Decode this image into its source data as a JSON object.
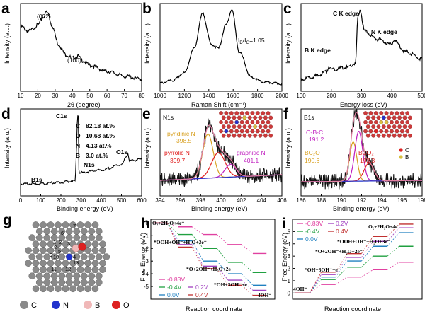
{
  "panels": {
    "a": {
      "letter": "a",
      "xlabel": "2θ (degree)",
      "ylabel": "Intensity (a.u.)",
      "xticks": [
        "10",
        "20",
        "30",
        "40",
        "50",
        "60",
        "70",
        "80"
      ],
      "peaks": [
        {
          "label": "(002)"
        },
        {
          "label": "(100)"
        }
      ]
    },
    "b": {
      "letter": "b",
      "xlabel": "Raman Shift (cm⁻¹)",
      "ylabel": "Intensity (a.u.)",
      "xticks": [
        "1000",
        "1200",
        "1400",
        "1600",
        "1800",
        "2000"
      ],
      "ratio": "I",
      "ratio_sub_d": "D",
      "ratio_mid": "/I",
      "ratio_sub_g": "G",
      "ratio_val": "=1.05"
    },
    "c": {
      "letter": "c",
      "xlabel": "Energy loss (eV)",
      "ylabel": "Intensity (a.u.)",
      "xticks": [
        "100",
        "200",
        "300",
        "400",
        "500"
      ],
      "edges": [
        {
          "label": "B K edge"
        },
        {
          "label": "C K edge"
        },
        {
          "label": "N K edge"
        }
      ]
    },
    "d": {
      "letter": "d",
      "xlabel": "Binding energy (eV)",
      "ylabel": "Intensity (a.u.)",
      "xticks": [
        "0",
        "100",
        "200",
        "300",
        "400",
        "500",
        "600"
      ],
      "peaks": [
        {
          "label": "C1s"
        },
        {
          "label": "N1s"
        },
        {
          "label": "O1s"
        },
        {
          "label": "B1s"
        }
      ],
      "composition": [
        {
          "el": "C",
          "val": "82.18 at.%"
        },
        {
          "el": "O",
          "val": "10.68 at.%"
        },
        {
          "el": "N",
          "val": "4.13 at.%"
        },
        {
          "el": "B",
          "val": "3.0 at.%"
        }
      ]
    },
    "e": {
      "letter": "e",
      "title": "N1s",
      "xlabel": "Binding energy (eV)",
      "ylabel": "Intensity (a.u.)",
      "xticks": [
        "394",
        "396",
        "398",
        "400",
        "402",
        "404",
        "406"
      ],
      "components": [
        {
          "name": "pyridinic N",
          "value": "398.5",
          "color": "#d8a020"
        },
        {
          "name": "pyrrolic N",
          "value": "399.7",
          "color": "#e02020"
        },
        {
          "name": "graphitic N",
          "value": "401.1",
          "color": "#c020c0"
        }
      ]
    },
    "f": {
      "letter": "f",
      "title": "B1s",
      "xlabel": "Binding energy (eV)",
      "ylabel": "Intensity (a.u.)",
      "xticks": [
        "186",
        "188",
        "190",
        "192",
        "194",
        "196",
        "198"
      ],
      "components": [
        {
          "name": "O-B-C",
          "value": "191.2",
          "color": "#c020c0"
        },
        {
          "name": "BC₂O",
          "value": "190.6",
          "color": "#d8a020"
        },
        {
          "name": "BCO₂",
          "value": "192.3",
          "color": "#e02020"
        }
      ],
      "legend": [
        {
          "label": "O"
        },
        {
          "label": "B"
        }
      ]
    },
    "g": {
      "letter": "g",
      "site_numbers": [
        "1",
        "2",
        "3",
        "4",
        "5",
        "6",
        "7",
        "8",
        "9",
        "10",
        "11",
        "12",
        "13"
      ],
      "legend": [
        {
          "label": "C",
          "color": "#8a8a8a"
        },
        {
          "label": "N",
          "color": "#2233cc"
        },
        {
          "label": "B",
          "color": "#f0b8b8"
        },
        {
          "label": "O",
          "color": "#dd2222"
        }
      ]
    },
    "h": {
      "letter": "h",
      "xlabel": "Reaction coordinate",
      "ylabel": "Free Energy (eV)",
      "yticks": [
        "0",
        "-1",
        "-2",
        "-3",
        "-4",
        "-5"
      ],
      "steps": [
        "O₂+2H₂O+4e⁻",
        "*OOH+OH⁻+H₂O+3e⁻",
        "*O+2OH⁻+H₂O+2e",
        "*OH+3OH⁻+e",
        "4OH⁻"
      ],
      "potentials": [
        {
          "label": "-0.83V",
          "color": "#e040a0"
        },
        {
          "label": "-0.4V",
          "color": "#20a040"
        },
        {
          "label": "0.0V",
          "color": "#2080c0"
        },
        {
          "label": "0.2V",
          "color": "#a040c0"
        },
        {
          "label": "0.4V",
          "color": "#c03030"
        }
      ]
    },
    "i": {
      "letter": "i",
      "xlabel": "Reaction coordinate",
      "ylabel": "Free Energy (eV)",
      "yticks": [
        "5",
        "4",
        "3",
        "2",
        "1",
        "0"
      ],
      "steps": [
        "O₂+2H₂O+4e⁻",
        "*OOH+OH⁻+H₂O+3e⁻",
        "*O+2OH⁻+H₂O+2e⁻",
        "*OH+3OH⁻+e⁻",
        "4OH⁻"
      ],
      "potentials": [
        {
          "label": "-0.83V",
          "color": "#e040a0"
        },
        {
          "label": "-0.4V",
          "color": "#20a040"
        },
        {
          "label": "0.0V",
          "color": "#2080c0"
        },
        {
          "label": "0.2V",
          "color": "#a040c0"
        },
        {
          "label": "0.4V",
          "color": "#c03030"
        }
      ]
    }
  },
  "chart_data": [
    {
      "panel": "a",
      "type": "line",
      "xlabel": "2θ (degree)",
      "ylabel": "Intensity (a.u.)",
      "xlim": [
        10,
        80
      ],
      "x": [
        10,
        15,
        20,
        23,
        25,
        26,
        28,
        32,
        36,
        40,
        43,
        46,
        50,
        60,
        70,
        80
      ],
      "y": [
        0.78,
        0.72,
        0.8,
        0.9,
        0.97,
        0.95,
        0.8,
        0.55,
        0.42,
        0.37,
        0.4,
        0.34,
        0.28,
        0.2,
        0.14,
        0.1
      ],
      "annotations": [
        "(002)",
        "(100)"
      ]
    },
    {
      "panel": "b",
      "type": "line",
      "xlabel": "Raman Shift (cm⁻¹)",
      "ylabel": "Intensity (a.u.)",
      "xlim": [
        1000,
        2000
      ],
      "x": [
        1000,
        1100,
        1200,
        1280,
        1350,
        1420,
        1480,
        1540,
        1590,
        1650,
        1750,
        1850,
        2000
      ],
      "y": [
        0.05,
        0.08,
        0.18,
        0.5,
        0.95,
        0.55,
        0.5,
        0.8,
        1.0,
        0.45,
        0.12,
        0.06,
        0.04
      ],
      "annotations": [
        "ID/IG=1.05"
      ]
    },
    {
      "panel": "c",
      "type": "line",
      "xlabel": "Energy loss (eV)",
      "ylabel": "Intensity (a.u.)",
      "xlim": [
        100,
        500
      ],
      "x": [
        100,
        150,
        185,
        192,
        200,
        250,
        280,
        288,
        295,
        310,
        350,
        398,
        405,
        450,
        500
      ],
      "y": [
        0.1,
        0.14,
        0.2,
        0.26,
        0.22,
        0.25,
        0.3,
        0.9,
        1.0,
        0.72,
        0.62,
        0.55,
        0.6,
        0.45,
        0.36
      ],
      "annotations": [
        "B K edge",
        "C K edge",
        "N K edge"
      ]
    },
    {
      "panel": "d",
      "type": "line",
      "xlabel": "Binding energy (eV)",
      "ylabel": "Intensity (a.u.)",
      "xlim": [
        0,
        600
      ],
      "x": [
        0,
        100,
        190,
        270,
        284,
        290,
        300,
        400,
        500,
        530,
        532,
        540,
        600
      ],
      "y": [
        0.1,
        0.1,
        0.12,
        0.14,
        1.0,
        0.25,
        0.25,
        0.28,
        0.35,
        0.48,
        0.5,
        0.4,
        0.42
      ],
      "annotations": [
        "C1s",
        "N1s",
        "O1s",
        "B1s"
      ]
    },
    {
      "panel": "e",
      "type": "line",
      "title": "N1s",
      "xlabel": "Binding energy (eV)",
      "ylabel": "Intensity (a.u.)",
      "xlim": [
        393,
        407
      ],
      "series": [
        {
          "name": "pyridinic N",
          "center": 398.5
        },
        {
          "name": "pyrrolic N",
          "center": 399.7
        },
        {
          "name": "graphitic N",
          "center": 401.1
        }
      ]
    },
    {
      "panel": "f",
      "type": "line",
      "title": "B1s",
      "xlabel": "Binding energy (eV)",
      "ylabel": "Intensity (a.u.)",
      "xlim": [
        185,
        198
      ],
      "series": [
        {
          "name": "BC₂O",
          "center": 190.6
        },
        {
          "name": "O-B-C",
          "center": 191.2
        },
        {
          "name": "BCO₂",
          "center": 192.3
        }
      ]
    },
    {
      "panel": "h",
      "type": "line",
      "xlabel": "Reaction coordinate",
      "ylabel": "Free Energy (eV)",
      "ylim": [
        -6,
        0.3
      ],
      "categories": [
        "O₂+2H₂O+4e⁻",
        "*OOH+OH⁻+H₂O+3e⁻",
        "*O+2OH⁻+H₂O+2e",
        "*OH+3OH⁻+e",
        "4OH⁻"
      ],
      "series": [
        {
          "name": "-0.83V",
          "values": [
            0,
            -0.3,
            -0.9,
            -1.7,
            -2.4
          ]
        },
        {
          "name": "-0.4V",
          "values": [
            0,
            -0.9,
            -2.0,
            -3.1,
            -3.9
          ]
        },
        {
          "name": "0.0V",
          "values": [
            0,
            -1.4,
            -3.0,
            -4.0,
            -4.9
          ]
        },
        {
          "name": "0.2V",
          "values": [
            0,
            -1.7,
            -3.4,
            -4.5,
            -5.3
          ]
        },
        {
          "name": "0.4V",
          "values": [
            0,
            -1.9,
            -3.6,
            -4.9,
            -5.7
          ]
        }
      ]
    },
    {
      "panel": "i",
      "type": "line",
      "xlabel": "Reaction coordinate",
      "ylabel": "Free Energy (eV)",
      "ylim": [
        -0.5,
        6
      ],
      "categories": [
        "4OH⁻",
        "*OH+3OH⁻+e⁻",
        "*O+2OH⁻+H₂O+2e⁻",
        "*OOH+OH⁻+H₂O+3e⁻",
        "O₂+2H₂O+4e⁻"
      ],
      "series": [
        {
          "name": "-0.83V",
          "values": [
            0,
            0.7,
            1.3,
            1.9,
            2.5
          ]
        },
        {
          "name": "-0.4V",
          "values": [
            0,
            1.1,
            2.1,
            3.0,
            3.8
          ]
        },
        {
          "name": "0.0V",
          "values": [
            0,
            1.3,
            2.6,
            3.8,
            4.9
          ]
        },
        {
          "name": "0.2V",
          "values": [
            0,
            1.5,
            2.9,
            4.2,
            5.3
          ]
        },
        {
          "name": "0.4V",
          "values": [
            0,
            1.7,
            3.2,
            4.6,
            5.6
          ]
        }
      ]
    }
  ]
}
